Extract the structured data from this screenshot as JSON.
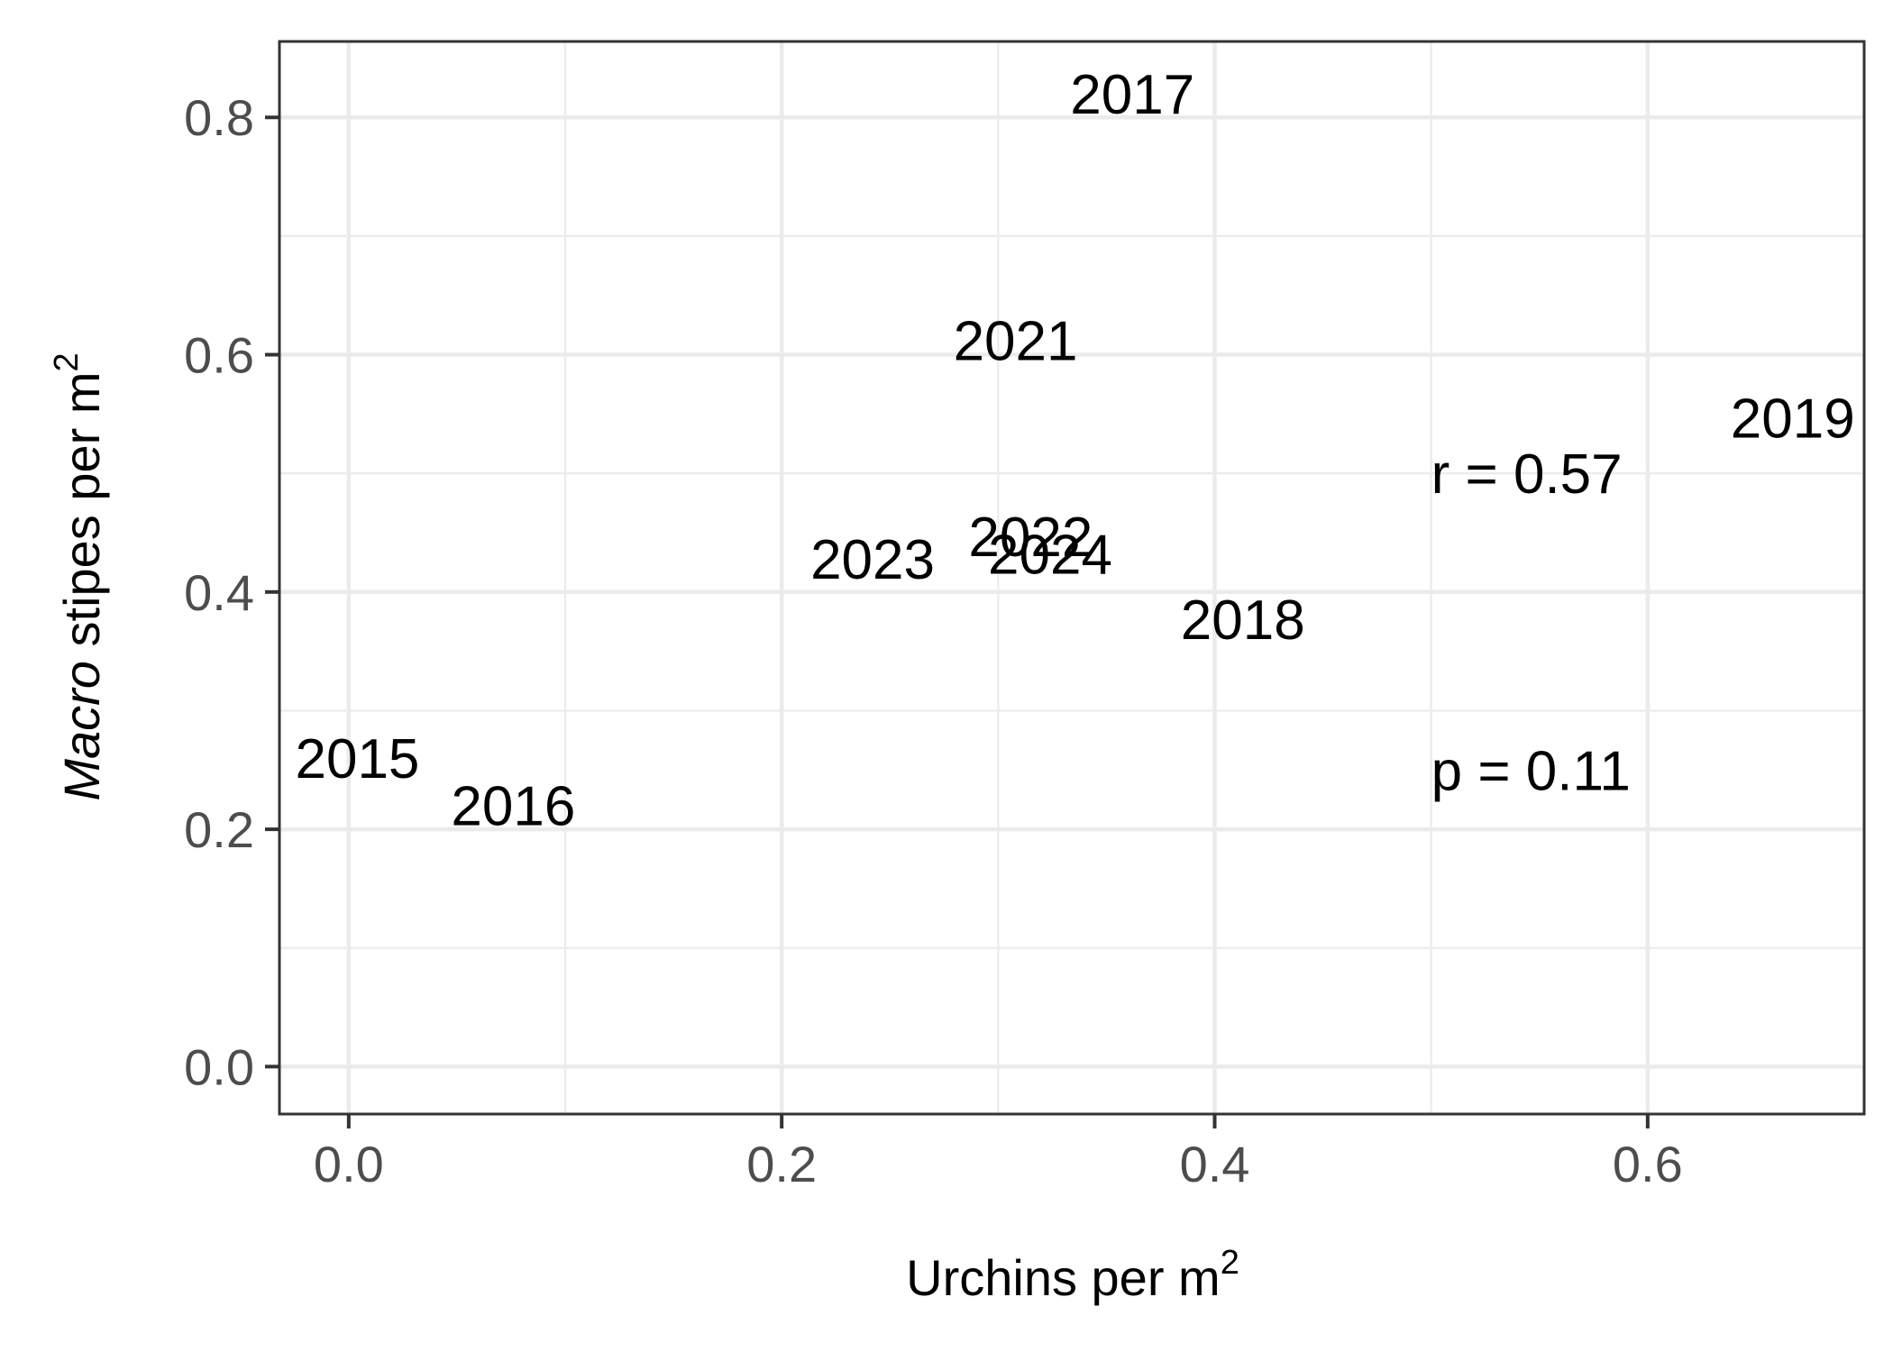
{
  "chart_data": {
    "type": "scatter",
    "xlabel": "Urchins per m",
    "xlabel_superscript": "2",
    "ylabel_italic": "Macro",
    "ylabel_rest": " stipes per m",
    "ylabel_superscript": "2",
    "xlim": [
      -0.032,
      0.7
    ],
    "ylim": [
      -0.04,
      0.864
    ],
    "x_ticks": [
      0.0,
      0.2,
      0.4,
      0.6
    ],
    "x_tick_labels": [
      "0.0",
      "0.2",
      "0.4",
      "0.6"
    ],
    "y_ticks": [
      0.0,
      0.2,
      0.4,
      0.6,
      0.8
    ],
    "y_tick_labels": [
      "0.0",
      "0.2",
      "0.4",
      "0.6",
      "0.8"
    ],
    "grid": true,
    "points": [
      {
        "label": "2015",
        "x": 0.004,
        "y": 0.26
      },
      {
        "label": "2016",
        "x": 0.076,
        "y": 0.22
      },
      {
        "label": "2017",
        "x": 0.362,
        "y": 0.82
      },
      {
        "label": "2018",
        "x": 0.413,
        "y": 0.377
      },
      {
        "label": "2019",
        "x": 0.667,
        "y": 0.547
      },
      {
        "label": "2021",
        "x": 0.308,
        "y": 0.612
      },
      {
        "label": "2022",
        "x": 0.315,
        "y": 0.447
      },
      {
        "label": "2023",
        "x": 0.242,
        "y": 0.428
      },
      {
        "label": "2024",
        "x": 0.324,
        "y": 0.432
      }
    ],
    "annotations": [
      {
        "text": "r = 0.57",
        "x": 0.5,
        "y": 0.5
      },
      {
        "text": "p = 0.11",
        "x": 0.5,
        "y": 0.25
      }
    ]
  }
}
